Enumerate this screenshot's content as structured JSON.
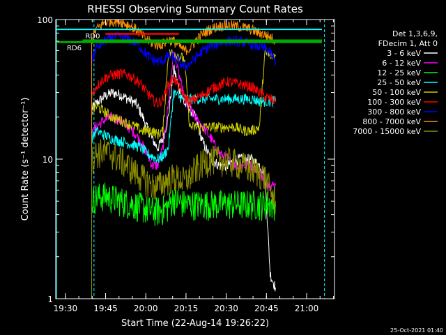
{
  "footer_timestamp": "25-Oct-2021 01:40",
  "chart_data": {
    "type": "line",
    "title": "RHESSI Observing Summary Count Rates",
    "xlabel": "Start Time (22-Aug-14 19:26:22)",
    "ylabel": "Count Rate (s⁻¹ detector⁻¹)",
    "yscale": "log",
    "ylim": [
      1,
      100
    ],
    "xlim_minutes": [
      0,
      104
    ],
    "x_ticks": [
      {
        "t": 3.6,
        "label": "19:30"
      },
      {
        "t": 18.6,
        "label": "19:45"
      },
      {
        "t": 33.6,
        "label": "20:00"
      },
      {
        "t": 48.6,
        "label": "20:15"
      },
      {
        "t": 63.6,
        "label": "20:30"
      },
      {
        "t": 78.6,
        "label": "20:45"
      },
      {
        "t": 93.6,
        "label": "21:00"
      }
    ],
    "y_ticks": [
      {
        "v": 1,
        "label": "1"
      },
      {
        "v": 10,
        "label": "10"
      },
      {
        "v": 100,
        "label": "100"
      }
    ],
    "legend": {
      "placement": "right",
      "header": [
        "Det 1,3,6,9,",
        "FDecim 1, Att 0"
      ],
      "entries": [
        {
          "label": "3 - 6 keV",
          "color": "#ffffff"
        },
        {
          "label": "6 - 12 keV",
          "color": "#ff00ff"
        },
        {
          "label": "12 - 25 keV",
          "color": "#00ff00"
        },
        {
          "label": "25 - 50 keV",
          "color": "#00ffff"
        },
        {
          "label": "50 - 100 keV",
          "color": "#cccc00"
        },
        {
          "label": "100 - 300 keV",
          "color": "#ff0000"
        },
        {
          "label": "300 - 800 keV",
          "color": "#0000ff"
        },
        {
          "label": "800 - 7000 keV",
          "color": "#ff8c00"
        },
        {
          "label": "7000 - 15000 keV",
          "color": "#8b8b00"
        }
      ]
    },
    "annotations": [
      {
        "label": "RD0",
        "y": 70,
        "t_start": 10,
        "t_end": 106,
        "color": "#00aa00"
      },
      {
        "label": "RD6",
        "y": 69,
        "t_start": 0,
        "t_end": 106,
        "color": "#00aa00"
      }
    ],
    "cyan_bar": {
      "y": 85,
      "color": "#00ffff"
    },
    "red_bar": {
      "y": 79,
      "t_start": 18.5,
      "t_end": 46,
      "color": "#ff0000"
    },
    "vertical_markers": [
      {
        "t": 0,
        "style": "solid",
        "color": "#00ffff"
      },
      {
        "t": 14,
        "style": "dashed",
        "color": "#00ffff"
      },
      {
        "t": 100,
        "style": "dashed",
        "color": "#00ffff"
      }
    ],
    "series": [
      {
        "name": "3 - 6 keV",
        "color": "#ffffff",
        "x": [
          13.4,
          15,
          18,
          21,
          24,
          27,
          30,
          32,
          34,
          36,
          38,
          40,
          42,
          44,
          46,
          48,
          50,
          52,
          55,
          58,
          61,
          64,
          67,
          70,
          73,
          76,
          78,
          80,
          82
        ],
        "y": [
          23,
          25,
          28,
          30,
          29,
          27,
          25,
          21,
          17,
          14,
          12,
          14,
          20,
          45,
          32,
          25,
          23,
          20,
          13,
          10,
          9,
          9,
          10,
          10,
          10,
          9,
          8,
          1.5,
          1.2
        ]
      },
      {
        "name": "6 - 12 keV",
        "color": "#ff00ff",
        "x": [
          13.4,
          15,
          18,
          21,
          24,
          27,
          30,
          32,
          34,
          36,
          38,
          40,
          42,
          44,
          46,
          48,
          50,
          52,
          55,
          58,
          61,
          64,
          67,
          70,
          73,
          76,
          78,
          80,
          82
        ],
        "y": [
          15,
          17,
          19,
          20,
          19,
          17,
          15,
          13,
          11,
          9,
          9,
          12,
          25,
          60,
          40,
          27,
          23,
          20,
          17,
          14,
          11,
          10,
          9,
          9,
          9,
          8,
          7,
          6.5,
          6.5
        ]
      },
      {
        "name": "12 - 25 keV",
        "color": "#00ff00",
        "x": [
          13.4,
          15,
          18,
          21,
          24,
          27,
          30,
          32,
          34,
          36,
          38,
          40,
          42,
          44,
          46,
          48,
          50,
          52,
          55,
          58,
          61,
          64,
          67,
          70,
          73,
          76,
          78,
          80,
          82
        ],
        "y": [
          5,
          5.4,
          5.5,
          5.3,
          5.1,
          4.9,
          4.7,
          4.6,
          4.4,
          4.3,
          4.3,
          4.4,
          4.6,
          5.3,
          5.0,
          4.8,
          4.8,
          4.8,
          4.8,
          4.8,
          4.8,
          4.8,
          4.8,
          4.8,
          4.8,
          4.8,
          4.8,
          4.8,
          4.8
        ]
      },
      {
        "name": "25 - 50 keV",
        "color": "#00ffff",
        "x": [
          13.4,
          15,
          18,
          21,
          24,
          27,
          30,
          32,
          34,
          36,
          38,
          40,
          42,
          44,
          46,
          48,
          50,
          52,
          55,
          58,
          61,
          64,
          67,
          70,
          73,
          76,
          78,
          80,
          82
        ],
        "y": [
          14,
          16,
          15,
          14,
          13.5,
          13,
          12.5,
          12,
          11,
          10.5,
          10,
          10.5,
          12,
          30,
          28,
          27,
          27,
          27,
          27,
          27,
          27,
          27,
          27,
          27,
          27,
          26,
          26,
          26,
          26
        ]
      },
      {
        "name": "50 - 100 keV",
        "color": "#cccc00",
        "x": [
          13.4,
          15,
          18,
          21,
          24,
          27,
          30,
          32,
          34,
          36,
          38,
          40,
          42,
          44,
          46,
          48,
          50,
          52,
          55,
          58,
          61,
          64,
          67,
          70,
          73,
          76,
          78,
          80,
          82
        ],
        "y": [
          22,
          24,
          22,
          20,
          19,
          18,
          17,
          16,
          16,
          16,
          15,
          16,
          57,
          58,
          55,
          52,
          17,
          17,
          17,
          17,
          17,
          17,
          17,
          16,
          16,
          17,
          57,
          55,
          55
        ]
      },
      {
        "name": "100 - 300 keV",
        "color": "#ff0000",
        "x": [
          13.4,
          15,
          18,
          21,
          24,
          27,
          30,
          32,
          34,
          36,
          38,
          40,
          42,
          44,
          46,
          48,
          50,
          52,
          55,
          58,
          61,
          64,
          67,
          70,
          73,
          76,
          78,
          80,
          82
        ],
        "y": [
          28,
          33,
          38,
          40,
          41,
          40,
          37,
          34,
          30,
          27,
          25,
          27,
          34,
          38,
          33,
          28,
          26,
          27,
          29,
          32,
          34,
          36,
          35,
          34,
          33,
          30,
          28,
          27,
          26
        ]
      },
      {
        "name": "300 - 800 keV",
        "color": "#0000ff",
        "x": [
          13.4,
          15,
          18,
          21,
          24,
          27,
          30,
          32,
          34,
          36,
          38,
          40,
          42,
          44,
          46,
          48,
          50,
          52,
          55,
          58,
          61,
          64,
          67,
          70,
          73,
          76,
          78,
          80,
          82
        ],
        "y": [
          50,
          62,
          70,
          74,
          75,
          73,
          68,
          62,
          56,
          52,
          50,
          51,
          55,
          54,
          50,
          46,
          48,
          53,
          60,
          65,
          68,
          70,
          70,
          69,
          67,
          64,
          62,
          58,
          50
        ]
      },
      {
        "name": "800 - 7000 keV",
        "color": "#ff8c00",
        "x": [
          13.4,
          15,
          18,
          21,
          24,
          27,
          30,
          32,
          34,
          36,
          38,
          40,
          42,
          44,
          46,
          48,
          50,
          52,
          55,
          58,
          61,
          64,
          67,
          70,
          73,
          76,
          78,
          80,
          82
        ],
        "y": [
          70,
          85,
          95,
          98,
          97,
          92,
          85,
          78,
          72,
          68,
          66,
          67,
          72,
          70,
          65,
          60,
          62,
          70,
          80,
          86,
          90,
          91,
          90,
          88,
          85,
          80,
          78,
          75,
          70
        ]
      },
      {
        "name": "7000 - 15000 keV",
        "color": "#8b8b00",
        "x": [
          13.4,
          15,
          18,
          21,
          24,
          27,
          30,
          32,
          34,
          36,
          38,
          40,
          42,
          44,
          46,
          48,
          50,
          52,
          55,
          58,
          61,
          64,
          67,
          70,
          73,
          76,
          78,
          80,
          82
        ],
        "y": [
          10,
          11,
          11.5,
          11,
          10,
          9,
          8,
          7.5,
          7,
          6.5,
          6.5,
          6.8,
          7.2,
          7.5,
          7.3,
          7,
          7.5,
          8.5,
          9.5,
          10,
          10,
          9.8,
          9.5,
          9,
          8.5,
          8,
          7.5,
          6,
          5
        ]
      }
    ]
  }
}
